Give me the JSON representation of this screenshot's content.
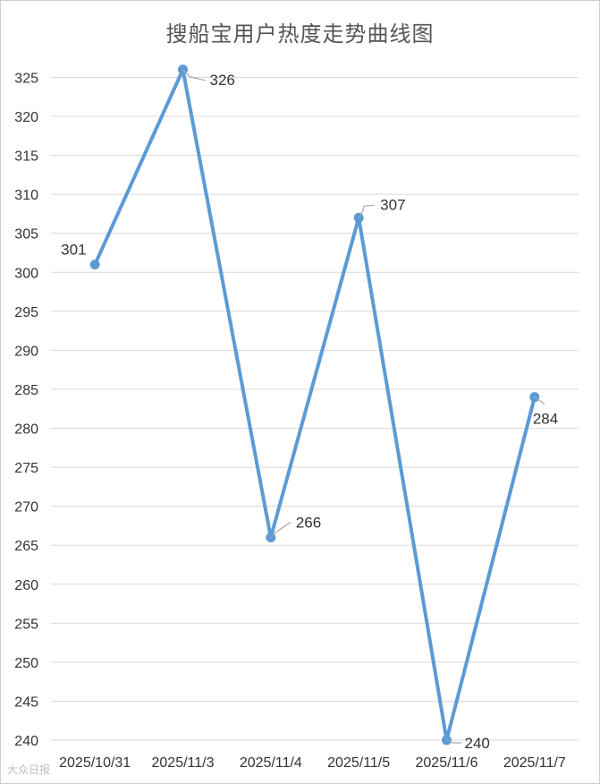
{
  "chart_data": {
    "type": "line",
    "title": "搜船宝用户热度走势曲线图",
    "categories": [
      "2025/10/31",
      "2025/11/3",
      "2025/11/4",
      "2025/11/5",
      "2025/11/6",
      "2025/11/7"
    ],
    "series": [
      {
        "values": [
          301,
          326,
          266,
          307,
          240,
          284
        ]
      }
    ],
    "data_labels": [
      "301",
      "326",
      "266",
      "307",
      "240",
      "284"
    ],
    "y_ticks": [
      240,
      245,
      250,
      255,
      260,
      265,
      270,
      275,
      280,
      285,
      290,
      295,
      300,
      305,
      310,
      315,
      320,
      325
    ],
    "ylim": [
      240,
      325
    ],
    "xlabel": "",
    "ylabel": "",
    "grid": true,
    "legend": "none",
    "colors": {
      "line": "#5b9bd5",
      "grid": "#d9d9d9",
      "text": "#333333",
      "leader": "#a6a6a6"
    }
  },
  "watermark": "大众日报"
}
